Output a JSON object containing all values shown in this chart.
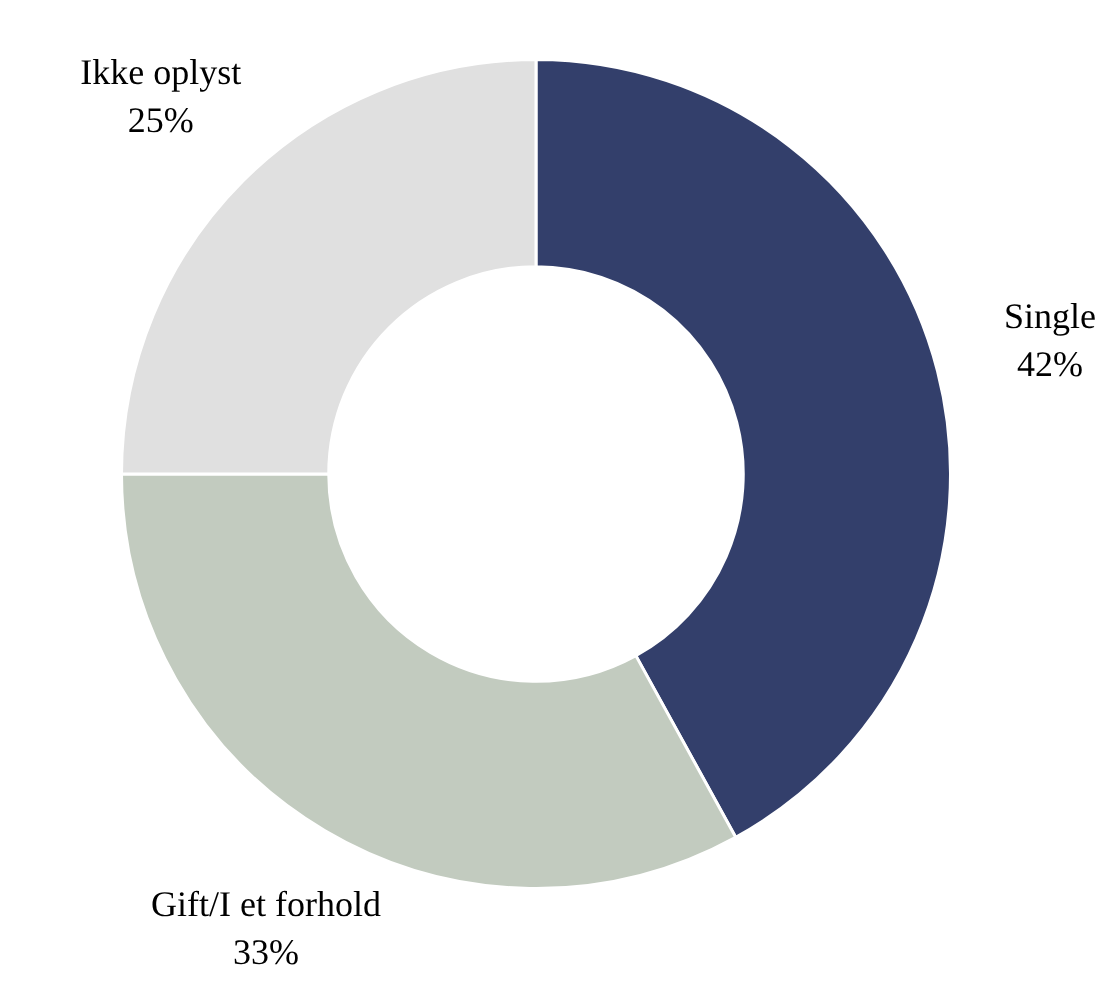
{
  "chart_data": {
    "type": "donut",
    "categories": [
      "Single",
      "Gift/I et forhold",
      "Ikke oplyst"
    ],
    "values": [
      42,
      33,
      25
    ],
    "value_labels": [
      "42%",
      "33%",
      "25%"
    ],
    "colors": [
      "#333f6b",
      "#c2cbbf",
      "#e0e0e0"
    ],
    "legend": false
  }
}
